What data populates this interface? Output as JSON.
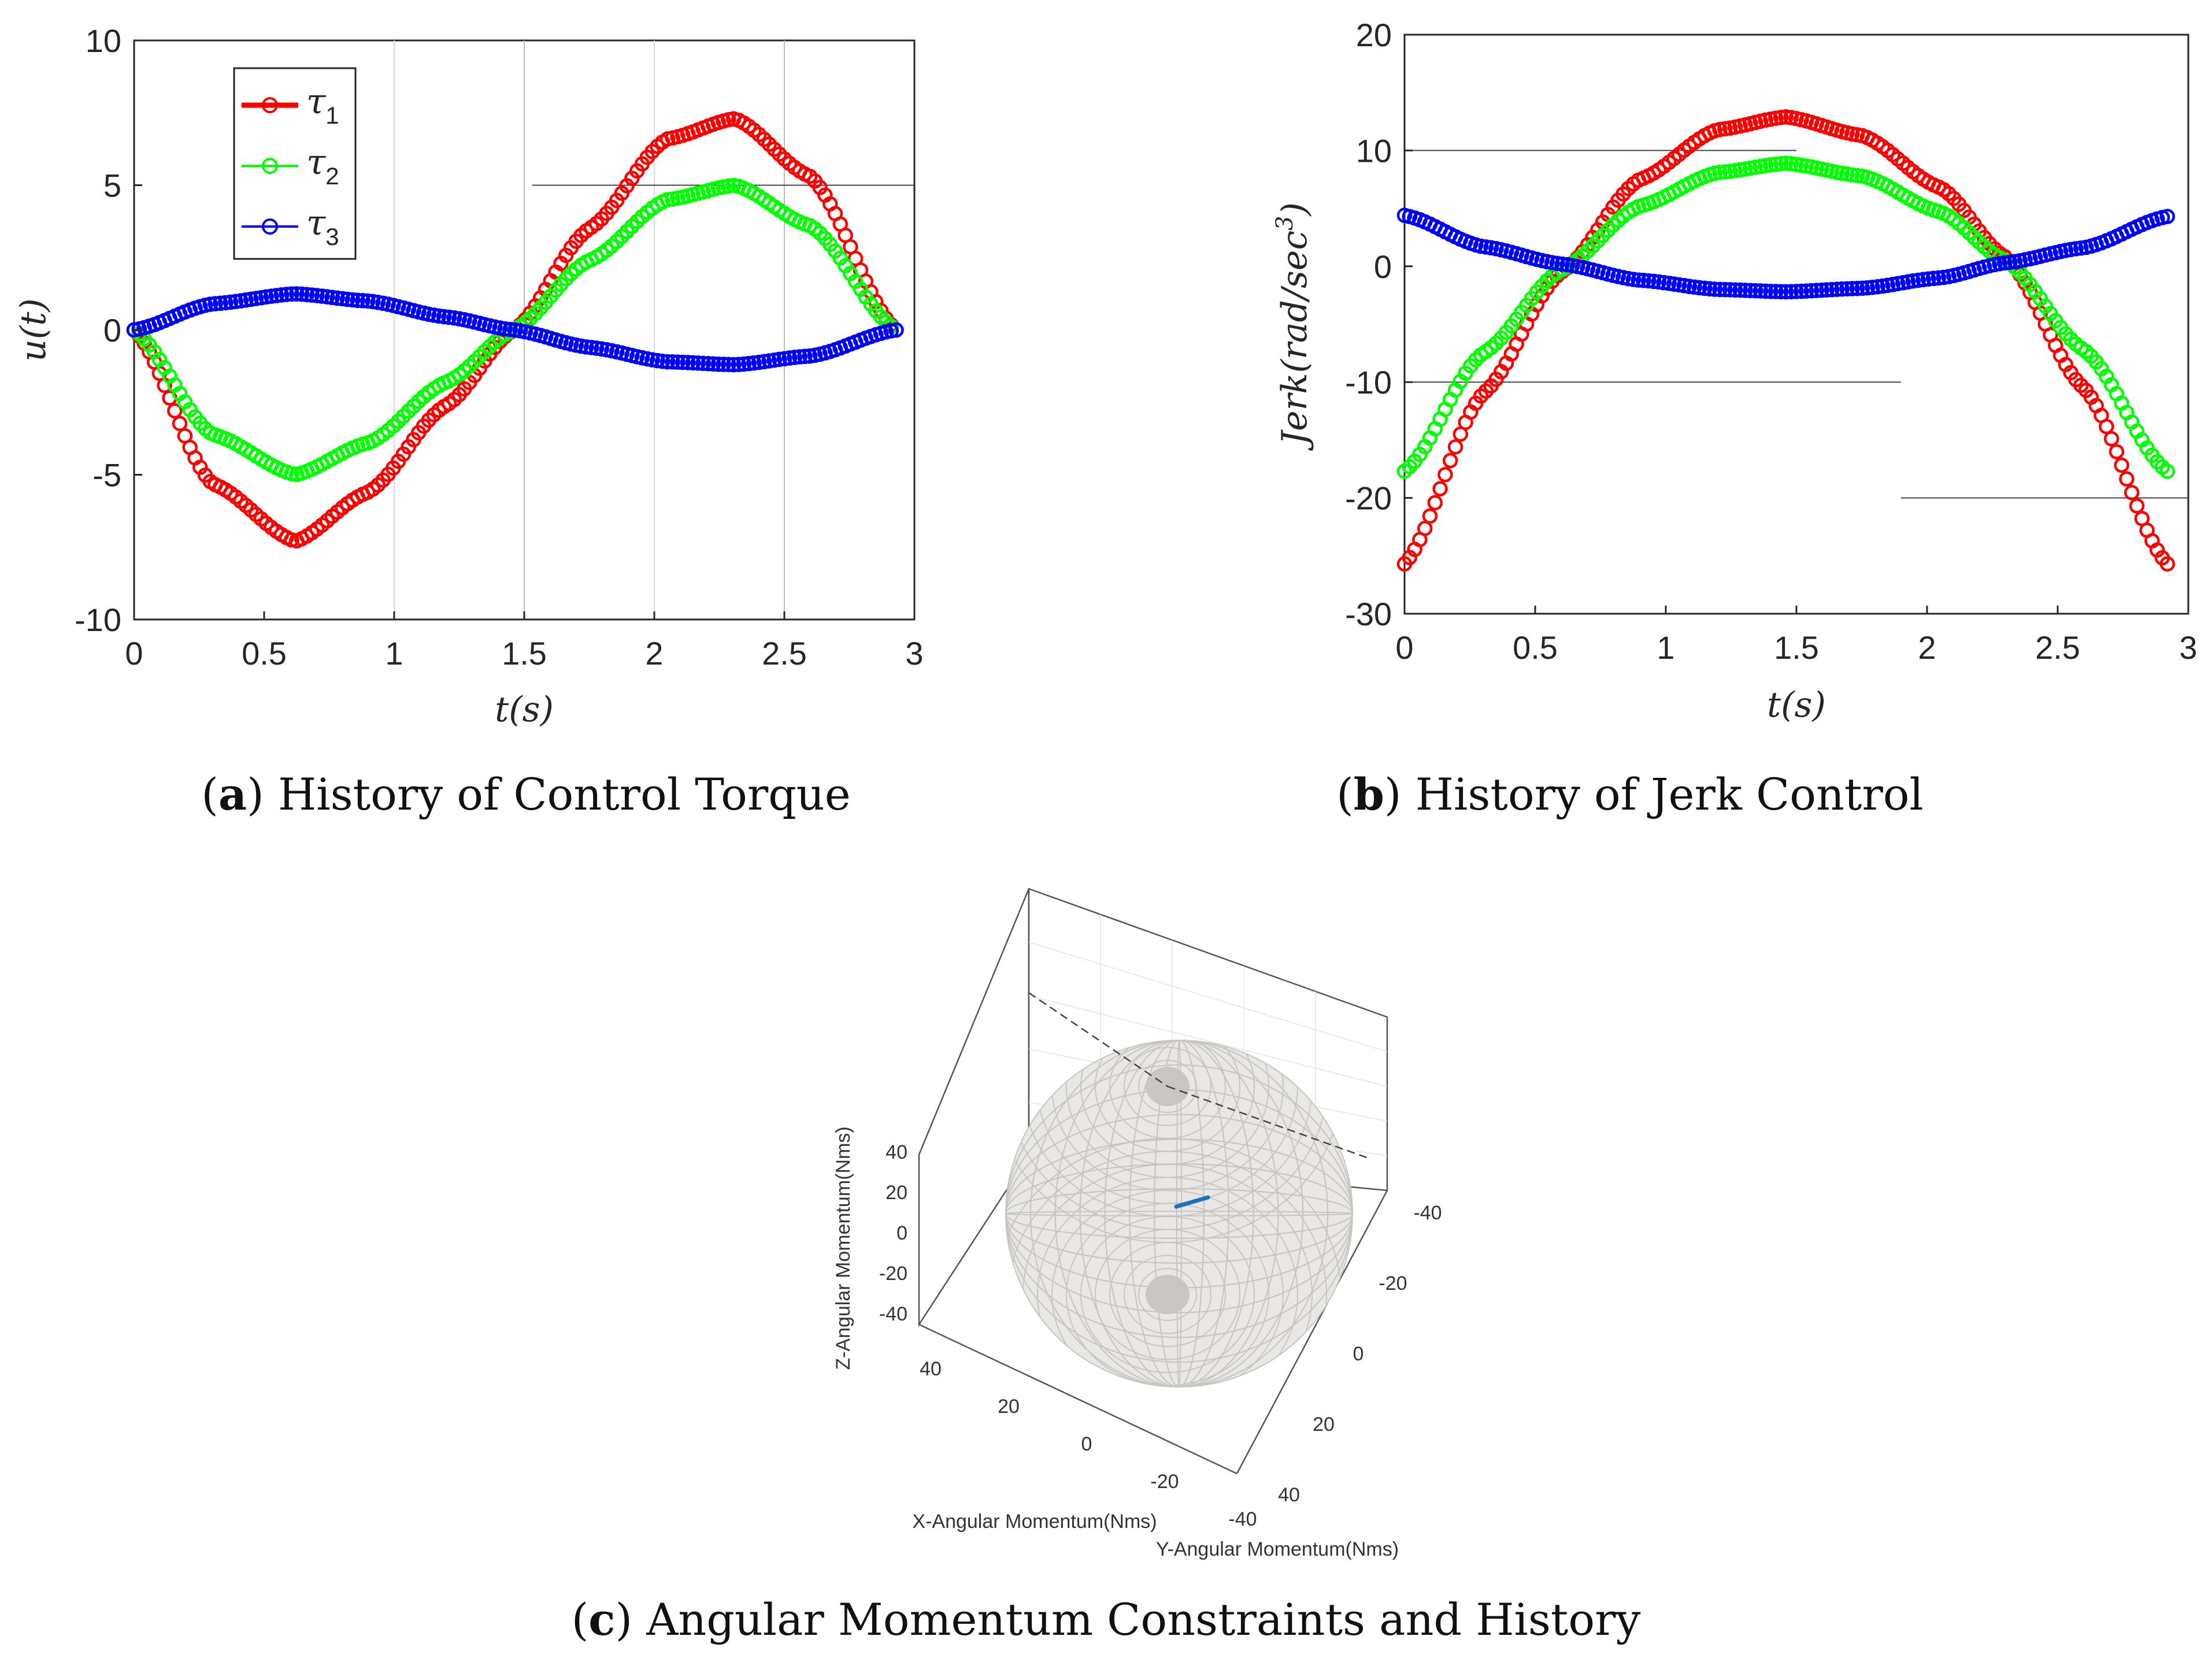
{
  "chart_data": [
    {
      "id": "a",
      "type": "line",
      "title": "History of Control Torque",
      "caption_letter": "a",
      "xlabel": "t(s)",
      "ylabel": "u(t)",
      "xlim": [
        0,
        3
      ],
      "ylim": [
        -10,
        10
      ],
      "xticks": [
        0,
        0.5,
        1,
        1.5,
        2,
        2.5,
        3
      ],
      "yticks": [
        -10,
        -5,
        0,
        5,
        10
      ],
      "xgrid_lines": [
        1,
        1.5,
        2,
        2.5
      ],
      "marker": "circle",
      "legend": {
        "position": "top-left"
      },
      "series": [
        {
          "name": "τ1",
          "label_main": "τ",
          "label_sub": "1",
          "color": "#ff0000",
          "x": [
            0,
            0.3,
            0.62,
            0.9,
            1.2,
            1.46,
            1.75,
            2.05,
            2.31,
            2.6,
            2.93
          ],
          "y": [
            0,
            -5.3,
            -7.3,
            -5.6,
            -2.6,
            0,
            3.5,
            6.6,
            7.3,
            5.3,
            0
          ]
        },
        {
          "name": "τ2",
          "label_main": "τ",
          "label_sub": "2",
          "color": "#00ff00",
          "x": [
            0,
            0.3,
            0.62,
            0.9,
            1.2,
            1.46,
            1.75,
            2.05,
            2.31,
            2.6,
            2.93
          ],
          "y": [
            0,
            -3.6,
            -5.0,
            -3.9,
            -1.8,
            0,
            2.4,
            4.5,
            5.0,
            3.6,
            0
          ]
        },
        {
          "name": "τ3",
          "label_main": "τ",
          "label_sub": "3",
          "color": "#0000ff",
          "x": [
            0,
            0.3,
            0.62,
            0.9,
            1.2,
            1.46,
            1.75,
            2.05,
            2.31,
            2.6,
            2.93
          ],
          "y": [
            0,
            0.9,
            1.25,
            1.0,
            0.45,
            0,
            -0.6,
            -1.1,
            -1.2,
            -0.9,
            0
          ]
        }
      ]
    },
    {
      "id": "b",
      "type": "line",
      "title": "History of Jerk Control",
      "caption_letter": "b",
      "xlabel": "t(s)",
      "ylabel": "Jerk(rad/sec",
      "ylabel_sup": "3",
      "ylabel_close": ")",
      "xlim": [
        0,
        3
      ],
      "ylim": [
        -30,
        20
      ],
      "xticks": [
        0,
        0.5,
        1,
        1.5,
        2,
        2.5,
        3
      ],
      "yticks": [
        -30,
        -20,
        -10,
        0,
        10,
        20
      ],
      "marker": "circle",
      "series": [
        {
          "name": "τ1",
          "color": "#ff0000",
          "x": [
            0,
            0.3,
            0.6,
            0.9,
            1.2,
            1.46,
            1.75,
            2.05,
            2.3,
            2.6,
            2.92
          ],
          "y": [
            -25.7,
            -11.0,
            -0.5,
            7.5,
            11.8,
            12.9,
            11.3,
            6.8,
            0.8,
            -10.5,
            -25.7
          ]
        },
        {
          "name": "τ2",
          "color": "#00ff00",
          "x": [
            0,
            0.3,
            0.6,
            0.9,
            1.2,
            1.46,
            1.75,
            2.05,
            2.3,
            2.6,
            2.92
          ],
          "y": [
            -17.7,
            -7.5,
            -0.3,
            5.2,
            8.1,
            8.9,
            7.8,
            4.7,
            0.5,
            -7.2,
            -17.7
          ]
        },
        {
          "name": "τ3",
          "color": "#0000ff",
          "x": [
            0,
            0.3,
            0.6,
            0.9,
            1.2,
            1.46,
            1.75,
            2.05,
            2.3,
            2.6,
            2.92
          ],
          "y": [
            4.4,
            1.7,
            0.2,
            -1.2,
            -2.0,
            -2.2,
            -1.9,
            -1.0,
            0.3,
            1.6,
            4.3
          ]
        }
      ]
    },
    {
      "id": "c",
      "type": "scatter",
      "title": "Angular Momentum Constraints and History",
      "caption_letter": "c",
      "xlabel": "X-Angular Momentum(Nms)",
      "ylabel": "Y-Angular Momentum(Nms)",
      "zlabel": "Z-Angular Momentum(Nms)",
      "xticks": [
        "40",
        "20",
        "0",
        "-20",
        "-40"
      ],
      "yticks": [
        "-40",
        "-20",
        "0",
        "20",
        "40"
      ],
      "zticks": [
        "40",
        "20",
        "0",
        "-20",
        "-40"
      ],
      "constraint_sphere_radius": 40,
      "sphere_color": "#c8c6c2",
      "history_color": "#1f6fbf"
    }
  ]
}
